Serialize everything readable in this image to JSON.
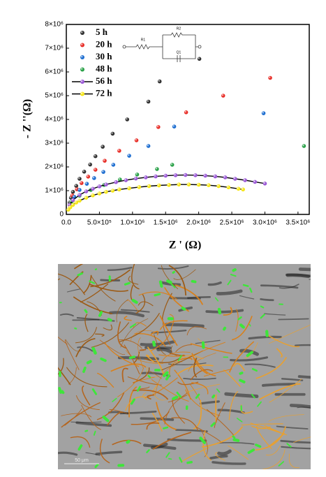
{
  "chart_data": {
    "type": "scatter",
    "xlabel": "Z ' (Ω)",
    "ylabel": "- Z ''(Ω)",
    "xlim": [
      0,
      3670000
    ],
    "ylim": [
      0,
      8000000
    ],
    "xticks": [
      {
        "value": 0,
        "label": "0.0"
      },
      {
        "value": 500000,
        "label": "5.0×10⁵"
      },
      {
        "value": 1000000,
        "label": "1.0×10⁶"
      },
      {
        "value": 1500000,
        "label": "1.5×10⁶"
      },
      {
        "value": 2000000,
        "label": "2.0×10⁶"
      },
      {
        "value": 2500000,
        "label": "2.5×10⁶"
      },
      {
        "value": 3000000,
        "label": "3.0×10⁶"
      },
      {
        "value": 3500000,
        "label": "3.5×10⁶"
      }
    ],
    "yticks": [
      0,
      {
        "value": 1000000,
        "label": "1×10⁶"
      },
      {
        "value": 2000000,
        "label": "2×10⁶"
      },
      {
        "value": 3000000,
        "label": "3×10⁶"
      },
      {
        "value": 4000000,
        "label": "4×10⁶"
      },
      {
        "value": 5000000,
        "label": "5×10⁶"
      },
      {
        "value": 6000000,
        "label": "6×10⁶"
      },
      {
        "value": 7000000,
        "label": "7×10⁶"
      },
      {
        "value": 8000000,
        "label": "8×10⁶"
      }
    ],
    "legend": "upper left",
    "annotations": [
      "R1",
      "R2",
      "Q1"
    ],
    "series": [
      {
        "name": "5 h",
        "color": "#333333",
        "fit": false,
        "x": [
          50000,
          70000,
          100000,
          150000,
          200000,
          270000,
          360000,
          440000,
          550000,
          700000,
          920000,
          1240000,
          1410000,
          2010000
        ],
        "values": [
          500000,
          700000,
          950000,
          1200000,
          1500000,
          1800000,
          2100000,
          2450000,
          2850000,
          3400000,
          4000000,
          4750000,
          5600000,
          6550000
        ]
      },
      {
        "name": "20 h",
        "color": "#e8302a",
        "fit": false,
        "x": [
          90000,
          160000,
          230000,
          330000,
          440000,
          580000,
          800000,
          1060000,
          1390000,
          1810000,
          2370000,
          3080000
        ],
        "values": [
          800000,
          1060000,
          1320000,
          1590000,
          1880000,
          2260000,
          2680000,
          3120000,
          3680000,
          4300000,
          5000000,
          5750000
        ]
      },
      {
        "name": "30 h",
        "color": "#1f6fd1",
        "fit": false,
        "x": [
          120000,
          200000,
          310000,
          420000,
          560000,
          710000,
          950000,
          1240000,
          1630000,
          2980000
        ],
        "values": [
          740000,
          1030000,
          1290000,
          1530000,
          1790000,
          2090000,
          2470000,
          2880000,
          3700000,
          4260000
        ]
      },
      {
        "name": "48 h",
        "color": "#2ca24a",
        "fit": false,
        "x": [
          80000,
          200000,
          370000,
          570000,
          810000,
          1070000,
          1370000,
          1600000,
          3590000
        ],
        "values": [
          530000,
          790000,
          1030000,
          1240000,
          1470000,
          1680000,
          1910000,
          2090000,
          2880000
        ]
      },
      {
        "name": "56 h",
        "color": "#9b59d6",
        "fit": true,
        "x": [
          50000,
          100000,
          200000,
          300000,
          400000,
          500000,
          600000,
          750000,
          900000,
          1050000,
          1200000,
          1350000,
          1500000,
          1650000,
          1800000,
          1950000,
          2100000,
          2250000,
          2400000,
          2550000,
          2700000,
          2850000,
          3000000
        ],
        "values": [
          400000,
          600000,
          820000,
          970000,
          1080000,
          1180000,
          1260000,
          1360000,
          1440000,
          1510000,
          1560000,
          1600000,
          1630000,
          1650000,
          1660000,
          1650000,
          1630000,
          1600000,
          1560000,
          1500000,
          1440000,
          1370000,
          1300000
        ]
      },
      {
        "name": "72 h",
        "color": "#f5e61a",
        "fit": true,
        "x": [
          30000,
          60000,
          100000,
          150000,
          200000,
          300000,
          400000,
          500000,
          600000,
          700000,
          800000,
          950000,
          1100000,
          1250000,
          1400000,
          1550000,
          1700000,
          1850000,
          2000000,
          2150000,
          2300000,
          2450000,
          2600000,
          2670000
        ],
        "values": [
          200000,
          300000,
          400000,
          500000,
          580000,
          700000,
          800000,
          880000,
          950000,
          1000000,
          1050000,
          1100000,
          1150000,
          1190000,
          1220000,
          1240000,
          1260000,
          1260000,
          1250000,
          1230000,
          1190000,
          1140000,
          1080000,
          1050000
        ]
      }
    ]
  },
  "image": {
    "scale_bar": "50 μm"
  }
}
